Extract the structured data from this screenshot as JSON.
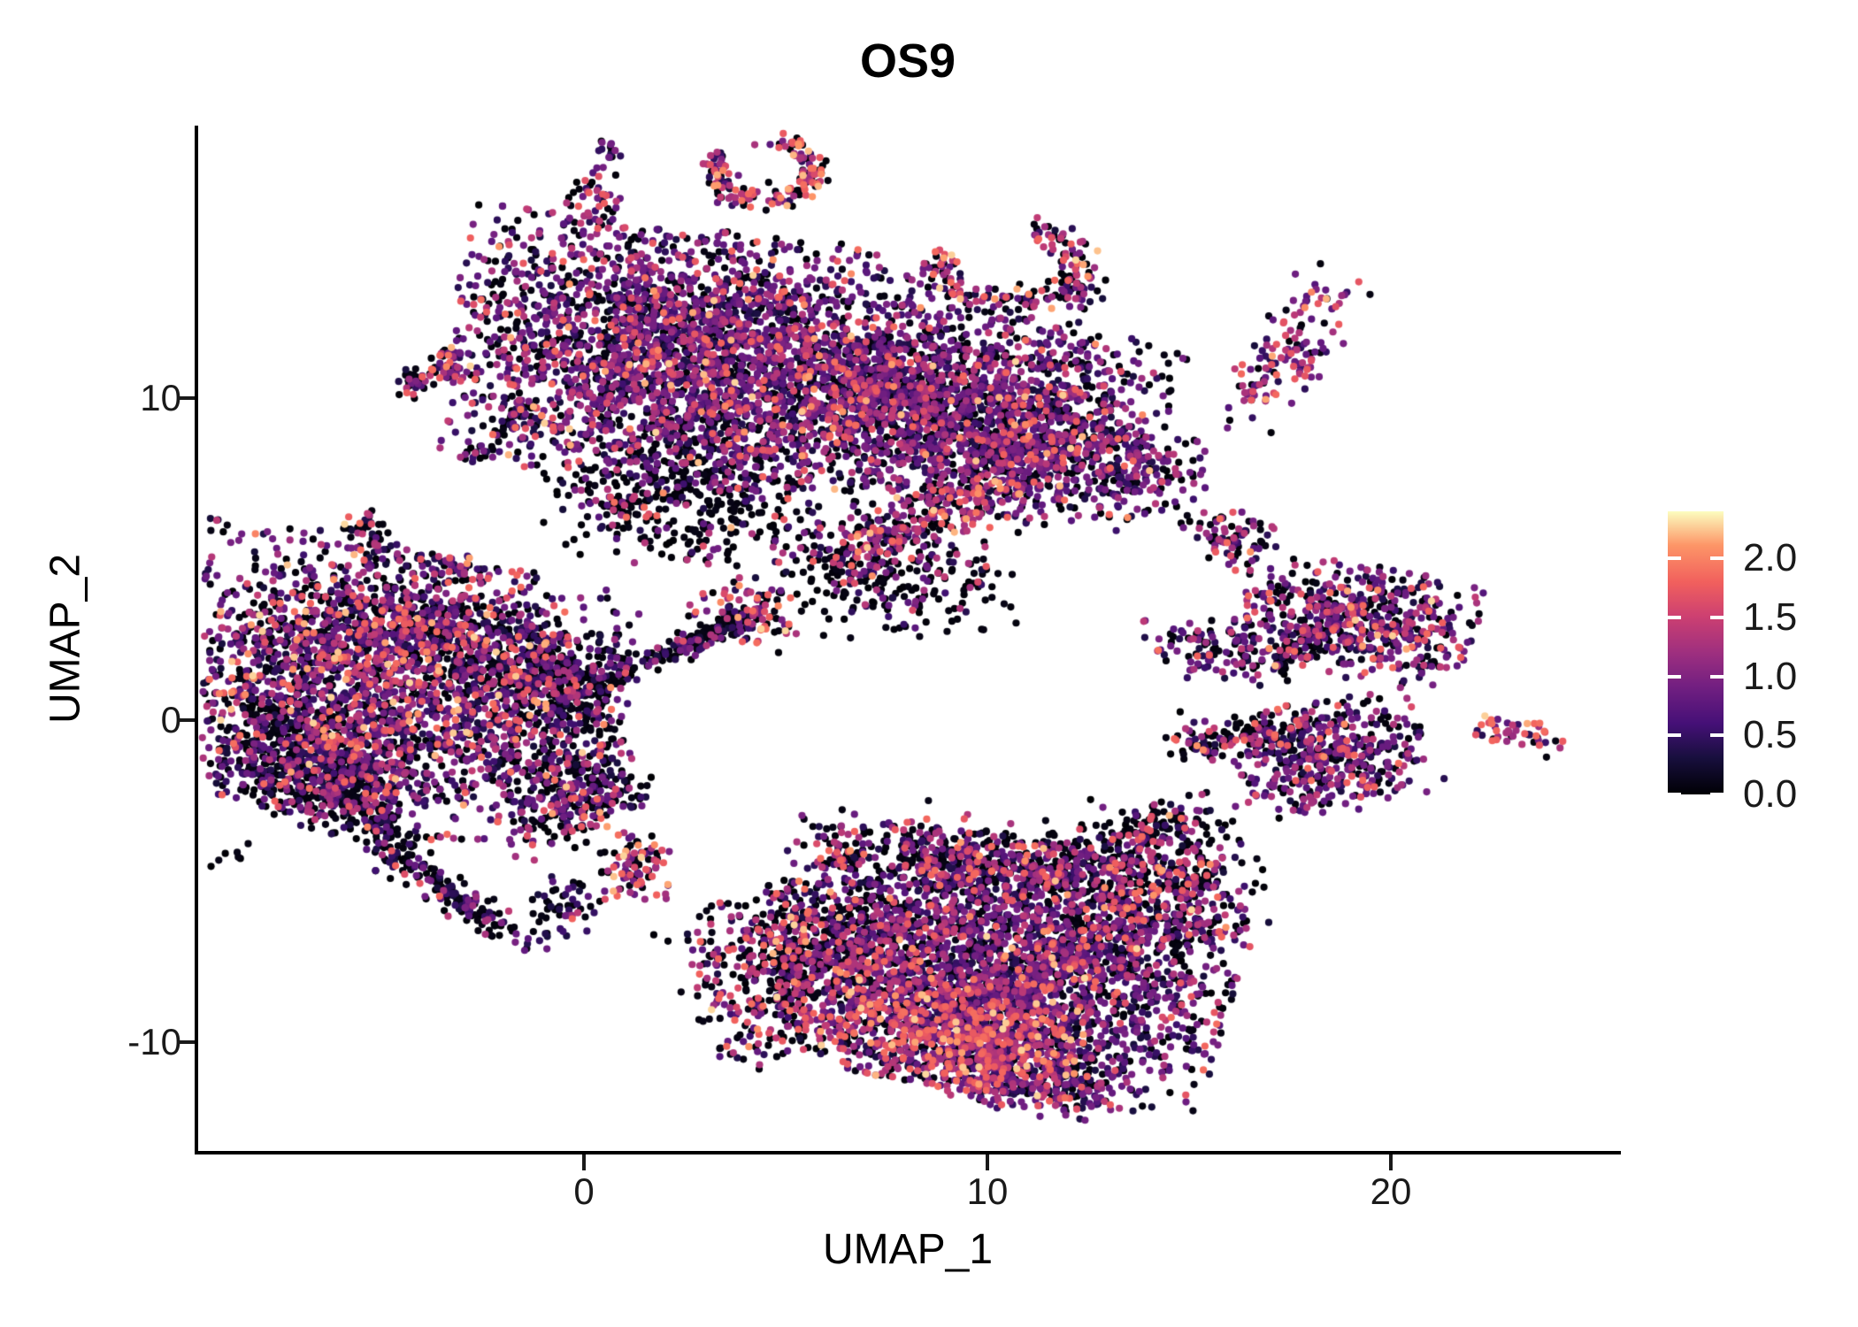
{
  "title": "OS9",
  "axes": {
    "x_label": "UMAP_1",
    "y_label": "UMAP_2",
    "x_ticks": [
      {
        "label": "0",
        "value": 0
      },
      {
        "label": "10",
        "value": 10
      },
      {
        "label": "20",
        "value": 20
      }
    ],
    "y_ticks": [
      {
        "label": "-10",
        "value": -10
      },
      {
        "label": "0",
        "value": 0
      },
      {
        "label": "10",
        "value": 10
      }
    ]
  },
  "colorbar": {
    "title": "",
    "min": 0.0,
    "max": 2.4,
    "colormap_name": "magma",
    "tick_labels": [
      {
        "label": "2.0",
        "value": 2.0
      },
      {
        "label": "1.5",
        "value": 1.5
      },
      {
        "label": "1.0",
        "value": 1.0
      },
      {
        "label": "0.5",
        "value": 0.5
      },
      {
        "label": "0.0",
        "value": 0.0
      }
    ],
    "colormap_stops": [
      [
        0.0,
        "#000004"
      ],
      [
        0.13,
        "#180F3E"
      ],
      [
        0.25,
        "#451077"
      ],
      [
        0.38,
        "#721F81"
      ],
      [
        0.5,
        "#9E2F7F"
      ],
      [
        0.63,
        "#CD4071"
      ],
      [
        0.75,
        "#F1605D"
      ],
      [
        0.88,
        "#FD9567"
      ],
      [
        1.0,
        "#FCFDBF"
      ]
    ]
  },
  "chart_data": {
    "type": "scatter",
    "title": "OS9",
    "xlabel": "UMAP_1",
    "ylabel": "UMAP_2",
    "x_range": [
      -9.6,
      25.7
    ],
    "y_range": [
      -13.4,
      18.5
    ],
    "grid": false,
    "legend_position": "right-colorbar",
    "color_meaning": "OS9 expression level, magma colormap, 0.0 (black) to 2.4 (pale yellow)",
    "point_radius_px": 4.1,
    "expression_levels": [
      0.03,
      0.42,
      0.85,
      1.3,
      1.75,
      2.15
    ],
    "clusters": [
      {
        "name": "top-tiny-blob",
        "type": "blob",
        "x": 0.57,
        "y": 17.6,
        "sx": 0.18,
        "sy": 0.25,
        "rot": 0,
        "n": 14,
        "mix": [
          0.3,
          0.4,
          0.3,
          0,
          0,
          0
        ]
      },
      {
        "name": "top-hook-ring",
        "type": "arc",
        "x": 4.45,
        "y": 17.05,
        "rx": 1.2,
        "ry": 0.9,
        "a0": -210,
        "a1": 80,
        "jitter": 0.18,
        "n": 170,
        "mix": [
          0.26,
          0.1,
          0.14,
          0.2,
          0.2,
          0.1
        ]
      },
      {
        "name": "top-small-blob",
        "type": "blob",
        "x": 0.26,
        "y": 16.1,
        "sx": 0.38,
        "sy": 0.6,
        "rot": 0,
        "n": 48,
        "mix": [
          0.3,
          0.15,
          0.2,
          0.15,
          0.15,
          0.05
        ]
      },
      {
        "name": "upper-arc",
        "type": "arc",
        "x": 10.55,
        "y": 14.1,
        "rx": 1.75,
        "ry": 1.1,
        "a0": 150,
        "a1": 430,
        "jitter": 0.22,
        "n": 170,
        "mix": [
          0.3,
          0.12,
          0.18,
          0.2,
          0.15,
          0.05
        ]
      },
      {
        "name": "upper-arc-tail",
        "type": "blob",
        "x": 12.3,
        "y": 13.3,
        "sx": 0.3,
        "sy": 0.5,
        "rot": 0,
        "n": 30,
        "mix": [
          0.5,
          0.2,
          0.2,
          0.1,
          0,
          0
        ]
      },
      {
        "name": "topright-diagonal",
        "type": "blob",
        "x": 17.5,
        "y": 11.4,
        "sx": 0.55,
        "sy": 1.5,
        "rot": -28,
        "n": 130,
        "mix": [
          0.22,
          0.15,
          0.23,
          0.2,
          0.15,
          0.05
        ]
      },
      {
        "name": "midleft-pair-a",
        "type": "blob",
        "x": -4.2,
        "y": 10.6,
        "sx": 0.28,
        "sy": 0.33,
        "rot": 0,
        "n": 32,
        "mix": [
          0.45,
          0.15,
          0.2,
          0.15,
          0.05,
          0
        ]
      },
      {
        "name": "midleft-pair-b",
        "type": "blob",
        "x": -3.4,
        "y": 11.05,
        "sx": 0.33,
        "sy": 0.3,
        "rot": 0,
        "n": 40,
        "mix": [
          0.25,
          0.1,
          0.2,
          0.2,
          0.2,
          0.05
        ]
      },
      {
        "name": "black-chain",
        "type": "streak",
        "pts": [
          [
            -2.75,
            8.1
          ],
          [
            -1.35,
            9.95
          ]
        ],
        "jitter": 0.13,
        "n": 50,
        "mix": [
          0.68,
          0.12,
          0.1,
          0.06,
          0.04,
          0
        ]
      },
      {
        "name": "small-left-blob",
        "type": "blob",
        "x": -5.4,
        "y": 5.85,
        "sx": 0.28,
        "sy": 0.5,
        "rot": 20,
        "n": 40,
        "mix": [
          0.45,
          0.2,
          0.1,
          0.1,
          0.12,
          0.03
        ]
      },
      {
        "name": "tiny-upper-left",
        "type": "blob",
        "x": -3.1,
        "y": 4.85,
        "sx": 0.42,
        "sy": 0.25,
        "rot": -25,
        "n": 26,
        "mix": [
          0.35,
          0.3,
          0.25,
          0.1,
          0,
          0
        ]
      },
      {
        "name": "left-main",
        "type": "blob",
        "x": -5.1,
        "y": 1.1,
        "sx": 3.1,
        "sy": 2.3,
        "rot": -14,
        "n": 2600,
        "mix": [
          0.33,
          0.2,
          0.23,
          0.13,
          0.08,
          0.03
        ]
      },
      {
        "name": "left-main-dark-corner",
        "type": "blob",
        "x": -6.6,
        "y": -1.4,
        "sx": 1.3,
        "sy": 1.0,
        "rot": -20,
        "n": 520,
        "mix": [
          0.62,
          0.15,
          0.12,
          0.07,
          0.04,
          0
        ]
      },
      {
        "name": "left-main-top-rim",
        "type": "blob",
        "x": -4.0,
        "y": 3.1,
        "sx": 2.0,
        "sy": 0.55,
        "rot": -12,
        "n": 300,
        "mix": [
          0.45,
          0.2,
          0.18,
          0.1,
          0.05,
          0.02
        ]
      },
      {
        "name": "left-tail",
        "type": "streak",
        "pts": [
          [
            -5.9,
            -1.6
          ],
          [
            -4.7,
            -4.2
          ],
          [
            -2.0,
            -6.5
          ]
        ],
        "jitter": 0.4,
        "taper": [
          1,
          0.45
        ],
        "n": 300,
        "mix": [
          0.6,
          0.2,
          0.12,
          0.06,
          0.02,
          0
        ]
      },
      {
        "name": "left-tail-end",
        "type": "blob",
        "x": -1.25,
        "y": -6.85,
        "sx": 0.25,
        "sy": 0.2,
        "rot": 0,
        "n": 10,
        "mix": [
          0.2,
          0.4,
          0.3,
          0.1,
          0,
          0
        ]
      },
      {
        "name": "left-satellite",
        "type": "blob",
        "x": -6.7,
        "y": -2.9,
        "sx": 0.22,
        "sy": 0.2,
        "rot": 0,
        "n": 12,
        "mix": [
          0.5,
          0.1,
          0.15,
          0.25,
          0,
          0
        ]
      },
      {
        "name": "far-left-dots",
        "type": "blob",
        "x": -8.8,
        "y": -4.3,
        "sx": 0.3,
        "sy": 0.25,
        "rot": 0,
        "n": 7,
        "mix": [
          0.6,
          0.1,
          0.1,
          0.1,
          0.1,
          0
        ]
      },
      {
        "name": "mid-dark-blob",
        "type": "blob",
        "x": -0.5,
        "y": 0.95,
        "sx": 0.85,
        "sy": 0.95,
        "rot": 0,
        "n": 280,
        "mix": [
          0.6,
          0.16,
          0.13,
          0.07,
          0.04,
          0
        ]
      },
      {
        "name": "mid-bridge",
        "type": "streak",
        "pts": [
          [
            -2.9,
            1.5
          ],
          [
            -1.2,
            1.1
          ]
        ],
        "jitter": 0.3,
        "n": 70,
        "mix": [
          0.55,
          0.2,
          0.15,
          0.07,
          0.03,
          0
        ]
      },
      {
        "name": "center-blob-a",
        "type": "blob",
        "x": -0.65,
        "y": -2.5,
        "sx": 0.55,
        "sy": 0.8,
        "rot": 0,
        "n": 150,
        "mix": [
          0.52,
          0.15,
          0.17,
          0.1,
          0.05,
          0.01
        ]
      },
      {
        "name": "center-blob-b",
        "type": "blob",
        "x": 0.42,
        "y": -2.0,
        "sx": 0.45,
        "sy": 0.75,
        "rot": 0,
        "n": 120,
        "mix": [
          0.45,
          0.18,
          0.2,
          0.1,
          0.06,
          0.01
        ]
      },
      {
        "name": "center-orange-core",
        "type": "blob",
        "x": 1.35,
        "y": -4.5,
        "sx": 0.5,
        "sy": 0.58,
        "rot": 0,
        "n": 95,
        "mix": [
          0.38,
          0.1,
          0.12,
          0.15,
          0.18,
          0.07
        ]
      },
      {
        "name": "center-tiny",
        "type": "blob",
        "x": 1.15,
        "y": -2.25,
        "sx": 0.3,
        "sy": 0.3,
        "rot": 0,
        "n": 20,
        "mix": [
          0.5,
          0.2,
          0.2,
          0.1,
          0,
          0
        ]
      },
      {
        "name": "center-small-low",
        "type": "blob",
        "x": -0.55,
        "y": -5.8,
        "sx": 0.5,
        "sy": 0.5,
        "rot": 0,
        "n": 50,
        "mix": [
          0.48,
          0.27,
          0.15,
          0.08,
          0.02,
          0
        ]
      },
      {
        "name": "tapered-streak",
        "type": "streak",
        "pts": [
          [
            -0.6,
            0.6
          ],
          [
            2.4,
            2.2
          ],
          [
            4.0,
            3.2
          ]
        ],
        "jitter": 0.3,
        "taper": [
          1,
          0.5
        ],
        "n": 230,
        "mix": [
          0.72,
          0.12,
          0.09,
          0.05,
          0.02,
          0
        ]
      },
      {
        "name": "streak-warm-head",
        "type": "blob",
        "x": 4.1,
        "y": 3.4,
        "sx": 0.75,
        "sy": 0.5,
        "rot": -25,
        "n": 95,
        "mix": [
          0.3,
          0.1,
          0.15,
          0.25,
          0.15,
          0.05
        ]
      },
      {
        "name": "top-main",
        "type": "blob",
        "x": 2.7,
        "y": 11.3,
        "sx": 3.2,
        "sy": 2.1,
        "rot": -8,
        "n": 3000,
        "mix": [
          0.28,
          0.2,
          0.3,
          0.14,
          0.06,
          0.02
        ]
      },
      {
        "name": "top-right-lobe",
        "type": "blob",
        "x": 10.4,
        "y": 9.5,
        "sx": 2.1,
        "sy": 1.65,
        "rot": -15,
        "n": 1600,
        "mix": [
          0.3,
          0.22,
          0.3,
          0.12,
          0.05,
          0.01
        ]
      },
      {
        "name": "top-bridge",
        "type": "blob",
        "x": 7.0,
        "y": 10.1,
        "sx": 1.35,
        "sy": 1.15,
        "rot": 0,
        "n": 450,
        "mix": [
          0.4,
          0.2,
          0.25,
          0.1,
          0.04,
          0.01
        ]
      },
      {
        "name": "below-top-sparse",
        "type": "blob",
        "x": 2.9,
        "y": 7.0,
        "sx": 2.1,
        "sy": 1.3,
        "rot": -5,
        "n": 430,
        "mix": [
          0.74,
          0.1,
          0.08,
          0.05,
          0.025,
          0.005
        ]
      },
      {
        "name": "below-top-warm-spot",
        "type": "blob",
        "x": 1.0,
        "y": 6.6,
        "sx": 0.5,
        "sy": 0.4,
        "rot": 0,
        "n": 40,
        "mix": [
          0.3,
          0.1,
          0.2,
          0.25,
          0.15,
          0
        ]
      },
      {
        "name": "thin-arm",
        "type": "streak",
        "pts": [
          [
            6.9,
            10.3
          ],
          [
            8.9,
            10.15
          ]
        ],
        "jitter": 0.14,
        "n": 55,
        "mix": [
          0.55,
          0.2,
          0.15,
          0.1,
          0,
          0
        ]
      },
      {
        "name": "center-ribbon",
        "type": "streak",
        "pts": [
          [
            6.4,
            5.0
          ],
          [
            8.8,
            6.5
          ],
          [
            11.7,
            8.5
          ]
        ],
        "jitter": 0.5,
        "n": 420,
        "mix": [
          0.3,
          0.12,
          0.2,
          0.2,
          0.13,
          0.05
        ]
      },
      {
        "name": "ribbon-hook",
        "type": "blob",
        "x": 13.8,
        "y": 7.8,
        "sx": 0.9,
        "sy": 0.7,
        "rot": -20,
        "n": 140,
        "mix": [
          0.35,
          0.2,
          0.25,
          0.14,
          0.05,
          0.01
        ]
      },
      {
        "name": "below-ribbon-scatter",
        "type": "blob",
        "x": 7.8,
        "y": 4.3,
        "sx": 1.6,
        "sy": 0.95,
        "rot": 0,
        "n": 220,
        "mix": [
          0.7,
          0.12,
          0.1,
          0.05,
          0.03,
          0
        ]
      },
      {
        "name": "right-mid-small-1",
        "type": "blob",
        "x": 16.0,
        "y": 5.6,
        "sx": 0.7,
        "sy": 0.5,
        "rot": -15,
        "n": 75,
        "mix": [
          0.35,
          0.15,
          0.2,
          0.2,
          0.1,
          0
        ]
      },
      {
        "name": "right-mid-small-2",
        "type": "blob",
        "x": 15.6,
        "y": 2.2,
        "sx": 1.0,
        "sy": 0.55,
        "rot": -10,
        "n": 115,
        "mix": [
          0.3,
          0.2,
          0.3,
          0.15,
          0.05,
          0
        ]
      },
      {
        "name": "right-big",
        "type": "blob",
        "x": 19.1,
        "y": 3.1,
        "sx": 1.65,
        "sy": 0.95,
        "rot": -8,
        "n": 560,
        "mix": [
          0.3,
          0.15,
          0.28,
          0.15,
          0.1,
          0.02
        ]
      },
      {
        "name": "right-big-tail",
        "type": "streak",
        "pts": [
          [
            17.3,
            1.7
          ],
          [
            18.2,
            2.9
          ]
        ],
        "jitter": 0.3,
        "n": 70,
        "mix": [
          0.6,
          0.15,
          0.1,
          0.1,
          0.05,
          0
        ]
      },
      {
        "name": "right-lower",
        "type": "blob",
        "x": 18.6,
        "y": -1.1,
        "sx": 1.3,
        "sy": 0.95,
        "rot": 15,
        "n": 430,
        "mix": [
          0.32,
          0.18,
          0.28,
          0.14,
          0.07,
          0.01
        ]
      },
      {
        "name": "right-lower-arm",
        "type": "streak",
        "pts": [
          [
            14.9,
            -0.9
          ],
          [
            16.4,
            -0.3
          ],
          [
            17.6,
            -0.5
          ]
        ],
        "jitter": 0.35,
        "n": 150,
        "mix": [
          0.5,
          0.1,
          0.1,
          0.15,
          0.13,
          0.02
        ]
      },
      {
        "name": "far-right-small",
        "type": "blob",
        "x": 23.2,
        "y": -0.4,
        "sx": 0.6,
        "sy": 0.28,
        "rot": -18,
        "n": 45,
        "mix": [
          0.25,
          0.1,
          0.1,
          0.25,
          0.25,
          0.05
        ]
      },
      {
        "name": "bottom-main",
        "type": "blob",
        "x": 10.3,
        "y": -7.6,
        "sx": 3.1,
        "sy": 2.1,
        "rot": -12,
        "n": 2800,
        "mix": [
          0.3,
          0.22,
          0.3,
          0.12,
          0.05,
          0.01
        ]
      },
      {
        "name": "bottom-bright-band",
        "type": "blob",
        "x": 9.2,
        "y": -9.7,
        "sx": 1.9,
        "sy": 1.0,
        "rot": -18,
        "n": 800,
        "mix": [
          0.15,
          0.1,
          0.2,
          0.25,
          0.22,
          0.08
        ]
      },
      {
        "name": "bottom-left-wing",
        "type": "blob",
        "x": 5.5,
        "y": -7.5,
        "sx": 1.7,
        "sy": 1.35,
        "rot": 25,
        "n": 700,
        "mix": [
          0.55,
          0.08,
          0.1,
          0.15,
          0.1,
          0.02
        ]
      },
      {
        "name": "bottom-top-edge",
        "type": "streak",
        "pts": [
          [
            7.8,
            -3.8
          ],
          [
            11.5,
            -4.8
          ],
          [
            15.0,
            -3.2
          ]
        ],
        "jitter": 0.6,
        "n": 520,
        "mix": [
          0.55,
          0.08,
          0.1,
          0.15,
          0.1,
          0.02
        ]
      },
      {
        "name": "bottom-right-edge",
        "type": "blob",
        "x": 14.2,
        "y": -5.3,
        "sx": 1.45,
        "sy": 1.2,
        "rot": 10,
        "n": 380,
        "mix": [
          0.45,
          0.12,
          0.15,
          0.17,
          0.09,
          0.02
        ]
      },
      {
        "name": "bottom-tip",
        "type": "blob",
        "x": 11.4,
        "y": -11.2,
        "sx": 1.3,
        "sy": 0.6,
        "rot": -12,
        "n": 190,
        "mix": [
          0.3,
          0.25,
          0.3,
          0.1,
          0.05,
          0
        ]
      },
      {
        "name": "above-bottom-small",
        "type": "blob",
        "x": 6.4,
        "y": -4.0,
        "sx": 0.42,
        "sy": 0.42,
        "rot": 0,
        "n": 45,
        "mix": [
          0.4,
          0.1,
          0.1,
          0.2,
          0.17,
          0.03
        ]
      }
    ]
  }
}
